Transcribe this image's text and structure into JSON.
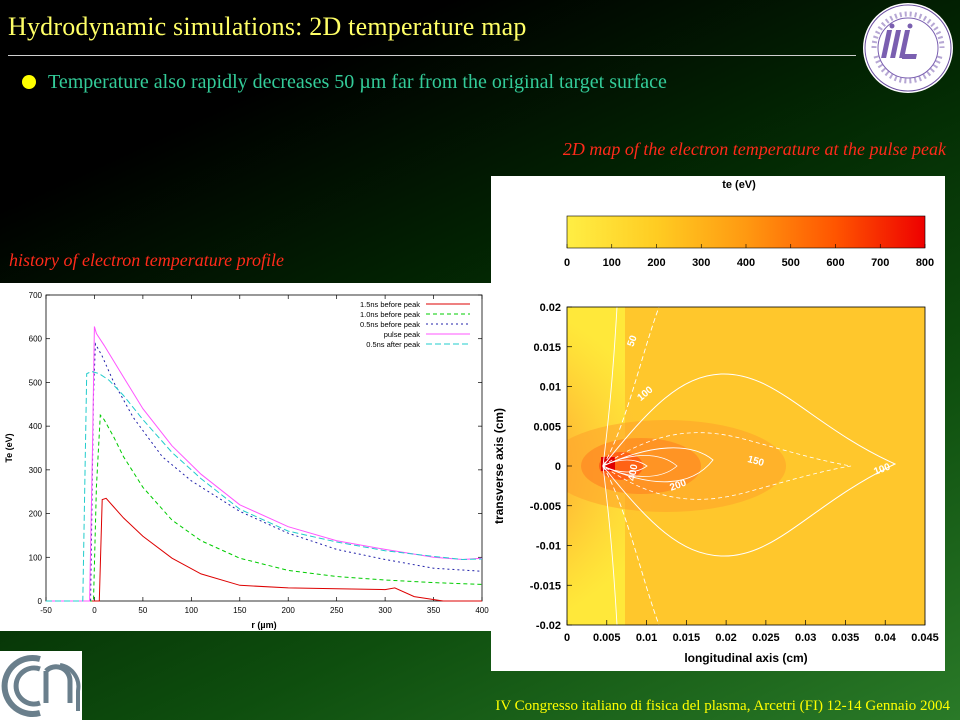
{
  "slide": {
    "title": "Hydrodynamic  simulations: 2D temperature map",
    "bullet": "Temperature also rapidly decreases 50 µm far from the original target surface",
    "caption_map": "2D map of the electron temperature at the pulse peak",
    "caption_history": "history of electron temperature profile",
    "footer": "IV Congresso italiano di fisica del plasma, Arcetri (FI) 12-14 Gennaio 2004",
    "colors": {
      "title": "#ffff66",
      "bullet_text": "#33cc99",
      "caption": "#ff2a1a",
      "footer": "#ffff00"
    }
  },
  "chart_data": [
    {
      "type": "line",
      "xlabel": "r (µm)",
      "ylabel": "Te (eV)",
      "xlim": [
        -50,
        400
      ],
      "ylim": [
        0,
        700
      ],
      "xticks": [
        "-50",
        "0",
        "50",
        "100",
        "150",
        "200",
        "250",
        "300",
        "350",
        "400"
      ],
      "yticks": [
        "0",
        "100",
        "200",
        "300",
        "400",
        "500",
        "600",
        "700"
      ],
      "legend": "top-right",
      "series": [
        {
          "name": "1.5ns before peak",
          "color": "#dd0000",
          "dash": "",
          "x": [
            -50,
            5,
            8,
            12,
            20,
            30,
            50,
            80,
            110,
            150,
            200,
            250,
            300,
            310,
            330,
            360,
            380,
            400
          ],
          "y": [
            0,
            0,
            232,
            235,
            215,
            190,
            148,
            98,
            62,
            36,
            30,
            28,
            26,
            30,
            10,
            0,
            0,
            0
          ]
        },
        {
          "name": "1.0ns before peak",
          "color": "#00cc00",
          "dash": "4,3",
          "x": [
            -50,
            -1,
            2,
            6,
            10,
            20,
            30,
            50,
            80,
            110,
            150,
            200,
            250,
            300,
            350,
            400
          ],
          "y": [
            0,
            0,
            260,
            425,
            415,
            375,
            330,
            260,
            185,
            138,
            98,
            70,
            56,
            48,
            42,
            38
          ]
        },
        {
          "name": "0.5ns before peak",
          "color": "#2222aa",
          "dash": "2,3",
          "x": [
            -50,
            -4,
            -1,
            1,
            3,
            8,
            20,
            40,
            70,
            100,
            150,
            200,
            250,
            300,
            350,
            400
          ],
          "y": [
            0,
            0,
            470,
            588,
            580,
            560,
            500,
            420,
            330,
            275,
            205,
            155,
            118,
            95,
            75,
            68
          ]
        },
        {
          "name": "pulse peak",
          "color": "#ff55ff",
          "dash": "",
          "x": [
            -50,
            -5,
            -2,
            0,
            2,
            10,
            25,
            50,
            80,
            110,
            150,
            200,
            250,
            300,
            350,
            380,
            400
          ],
          "y": [
            0,
            0,
            350,
            628,
            612,
            585,
            530,
            440,
            355,
            290,
            220,
            170,
            138,
            118,
            100,
            95,
            98
          ]
        },
        {
          "name": "0.5ns after peak",
          "color": "#22cccc",
          "dash": "6,3",
          "x": [
            -50,
            -12,
            -8,
            -3,
            5,
            15,
            30,
            50,
            80,
            110,
            150,
            200,
            250,
            300,
            350,
            380,
            400
          ],
          "y": [
            0,
            0,
            520,
            525,
            520,
            505,
            470,
            415,
            340,
            280,
            210,
            160,
            135,
            115,
            102,
            95,
            96
          ]
        }
      ]
    },
    {
      "type": "heatmap",
      "title": "te (eV)",
      "xlabel": "longitudinal axis (cm)",
      "ylabel": "transverse axis (cm)",
      "colorbar_ticks": [
        "0",
        "100",
        "200",
        "300",
        "400",
        "500",
        "600",
        "700",
        "800"
      ],
      "colorbar_range": [
        0,
        800
      ],
      "xticks": [
        "0",
        "0.005",
        "0.01",
        "0.015",
        "0.02",
        "0.025",
        "0.03",
        "0.035",
        "0.04",
        "0.045"
      ],
      "yticks": [
        "-0.02",
        "-0.015",
        "-0.01",
        "-0.005",
        "0",
        "0.005",
        "0.01",
        "0.015",
        "0.02"
      ],
      "xlim": [
        0,
        0.045
      ],
      "ylim": [
        -0.02,
        0.02
      ],
      "contour_labels": [
        "50",
        "100",
        "150",
        "200",
        "400",
        "100"
      ]
    }
  ]
}
